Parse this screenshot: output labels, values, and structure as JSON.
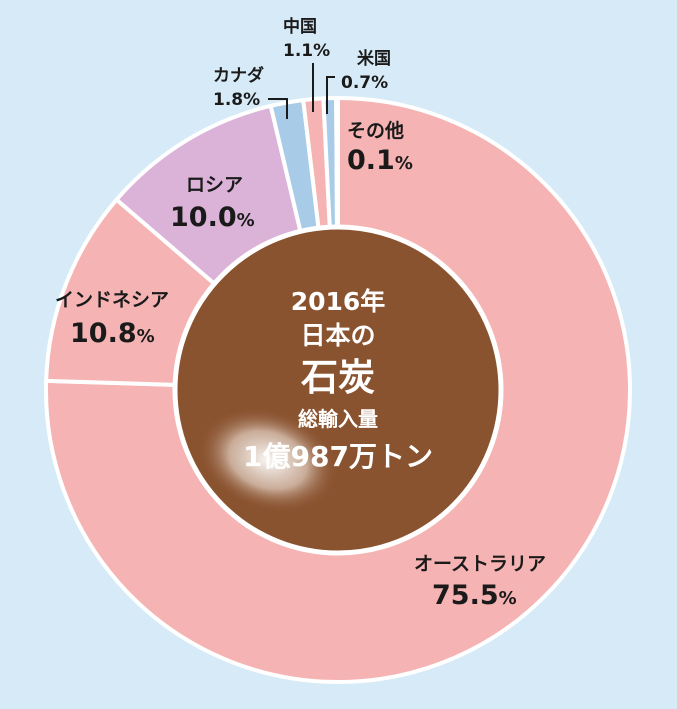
{
  "chart_data": {
    "type": "pie",
    "center": {
      "line1": "2016年",
      "line2": "日本の",
      "line3": "石炭",
      "line4": "総輸入量",
      "line5": "1億987万トン"
    },
    "slices": [
      {
        "name": "オーストラリア",
        "value": 75.5,
        "label": "75.5",
        "unit": "%",
        "color": "#f5b3b3"
      },
      {
        "name": "インドネシア",
        "value": 10.8,
        "label": "10.8",
        "unit": "%",
        "color": "#f5b3b3"
      },
      {
        "name": "ロシア",
        "value": 10.0,
        "label": "10.0",
        "unit": "%",
        "color": "#dbb3d9"
      },
      {
        "name": "カナダ",
        "value": 1.8,
        "label": "1.8",
        "unit": "%",
        "color": "#a8cbe8"
      },
      {
        "name": "中国",
        "value": 1.1,
        "label": "1.1",
        "unit": "%",
        "color": "#f5b3b3"
      },
      {
        "name": "米国",
        "value": 0.7,
        "label": "0.7",
        "unit": "%",
        "color": "#a8cbe8"
      },
      {
        "name": "その他",
        "value": 0.1,
        "label": "0.1",
        "unit": "%",
        "color": "#f5b3b3"
      }
    ],
    "colors": {
      "background": "#d6ebf7",
      "center_fill": "#8a5330",
      "slice_border": "#ffffff"
    }
  }
}
